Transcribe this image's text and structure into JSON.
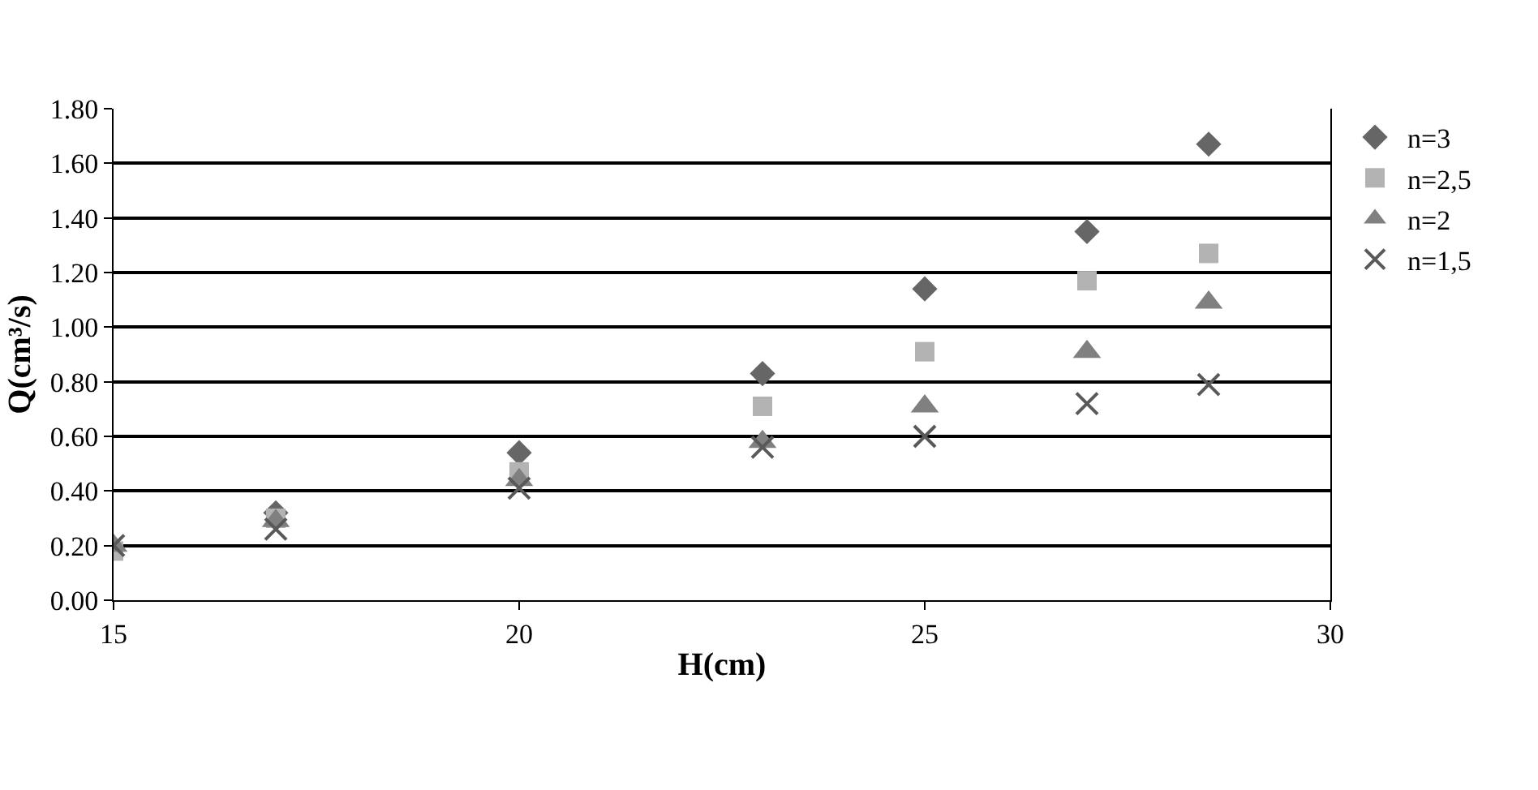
{
  "chart_data": {
    "type": "scatter",
    "xlabel": "H(cm)",
    "ylabel": "Q(cm³/s)",
    "x": [
      15,
      17,
      20,
      23,
      25,
      27,
      28.5
    ],
    "xlim": [
      15,
      30
    ],
    "xticks": [
      15,
      20,
      25,
      30
    ],
    "ylim": [
      0,
      1.8
    ],
    "yticks": [
      {
        "value": 0,
        "label": "0.00"
      },
      {
        "value": 0.2,
        "label": "0.20"
      },
      {
        "value": 0.4,
        "label": "0.40"
      },
      {
        "value": 0.6,
        "label": "0.60"
      },
      {
        "value": 0.8,
        "label": "0.80"
      },
      {
        "value": 1,
        "label": "1.00"
      },
      {
        "value": 1.2,
        "label": "1.20"
      },
      {
        "value": 1.4,
        "label": "1.40"
      },
      {
        "value": 1.6,
        "label": "1.60"
      },
      {
        "value": 1.8,
        "label": "1.80"
      }
    ],
    "grid": "y",
    "legend": "top right",
    "series": [
      {
        "name": "n=3",
        "color": "#666666",
        "marker": "diamond",
        "values": [
          null,
          0.32,
          0.54,
          0.83,
          1.14,
          1.35,
          1.67
        ]
      },
      {
        "name": "n=2,5",
        "color": "#b3b3b3",
        "marker": "square",
        "values": [
          0.18,
          0.3,
          0.47,
          0.71,
          0.91,
          1.17,
          1.27
        ]
      },
      {
        "name": "n=2",
        "color": "#808080",
        "marker": "triangle",
        "values": [
          0.2,
          0.29,
          0.44,
          0.58,
          0.71,
          0.91,
          1.09
        ]
      },
      {
        "name": "n=1,5",
        "color": "#595959",
        "marker": "cross",
        "values": [
          0.2,
          0.26,
          0.41,
          0.56,
          0.6,
          0.72,
          0.79
        ]
      }
    ]
  }
}
